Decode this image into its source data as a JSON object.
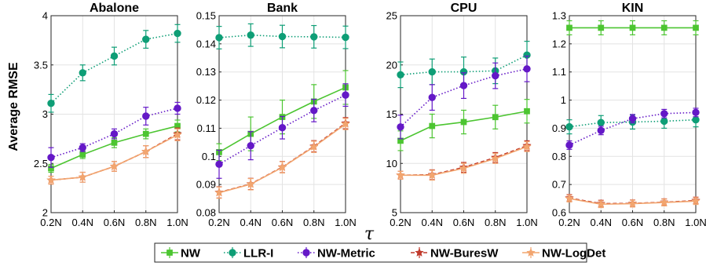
{
  "x_label": "τ",
  "y_label": "Average RMSE",
  "colors": {
    "NW": "#4cc531",
    "LLR-I": "#0e9e76",
    "NW-Metric": "#6418c7",
    "NW-BuresW": "#c0392b",
    "NW-LogDet": "#f2a56f"
  },
  "legend": [
    {
      "name": "NW",
      "marker": "square",
      "dash": "solid",
      "color_key": "NW"
    },
    {
      "name": "LLR-I",
      "marker": "circle",
      "dash": "dotted",
      "color_key": "LLR-I"
    },
    {
      "name": "NW-Metric",
      "marker": "circle",
      "dash": "dotted",
      "color_key": "NW-Metric"
    },
    {
      "name": "NW-BuresW",
      "marker": "star",
      "dash": "dashed",
      "color_key": "NW-BuresW"
    },
    {
      "name": "NW-LogDet",
      "marker": "star",
      "dash": "solid",
      "color_key": "NW-LogDet"
    }
  ],
  "chart_data": [
    {
      "type": "line",
      "title": "Abalone",
      "categories": [
        "0.2N",
        "0.4N",
        "0.6N",
        "0.8N",
        "1.0N"
      ],
      "ylim": [
        2,
        4
      ],
      "yticks": [
        2,
        2.5,
        3,
        3.5,
        4
      ],
      "ytick_labels": [
        "2",
        "2.5",
        "3",
        "3.5",
        "4"
      ],
      "grid": true,
      "series": [
        {
          "name": "NW",
          "values": [
            2.45,
            2.59,
            2.71,
            2.8,
            2.88
          ],
          "errors": [
            0.04,
            0.04,
            0.05,
            0.05,
            0.06
          ]
        },
        {
          "name": "LLR-I",
          "values": [
            3.11,
            3.42,
            3.59,
            3.76,
            3.82
          ],
          "errors": [
            0.09,
            0.08,
            0.09,
            0.09,
            0.09
          ]
        },
        {
          "name": "NW-Metric",
          "values": [
            2.56,
            2.66,
            2.8,
            2.98,
            3.06
          ],
          "errors": [
            0.1,
            0.04,
            0.05,
            0.09,
            0.06
          ]
        },
        {
          "name": "NW-BuresW",
          "values": [
            2.33,
            2.36,
            2.47,
            2.62,
            2.8
          ],
          "errors": [
            0.04,
            0.05,
            0.05,
            0.06,
            0.06
          ]
        },
        {
          "name": "NW-LogDet",
          "values": [
            2.33,
            2.36,
            2.47,
            2.62,
            2.79
          ],
          "errors": [
            0.04,
            0.05,
            0.05,
            0.06,
            0.06
          ]
        }
      ]
    },
    {
      "type": "line",
      "title": "Bank",
      "categories": [
        "0.2N",
        "0.4N",
        "0.6N",
        "0.8N",
        "1.0N"
      ],
      "ylim": [
        0.08,
        0.15
      ],
      "yticks": [
        0.08,
        0.09,
        0.1,
        0.11,
        0.12,
        0.13,
        0.14,
        0.15
      ],
      "ytick_labels": [
        "0.08",
        "0.09",
        "0.1",
        "0.11",
        "0.12",
        "0.13",
        "0.14",
        "0.15"
      ],
      "grid": true,
      "series": [
        {
          "name": "NW",
          "values": [
            0.1015,
            0.108,
            0.114,
            0.1195,
            0.1245
          ],
          "errors": [
            0.003,
            0.006,
            0.006,
            0.006,
            0.006
          ]
        },
        {
          "name": "LLR-I",
          "values": [
            0.1422,
            0.1431,
            0.1426,
            0.1425,
            0.1423
          ],
          "errors": [
            0.004,
            0.004,
            0.004,
            0.004,
            0.004
          ]
        },
        {
          "name": "NW-Metric",
          "values": [
            0.0972,
            0.1038,
            0.1102,
            0.1163,
            0.1218
          ],
          "errors": [
            0.005,
            0.005,
            0.004,
            0.004,
            0.004
          ]
        },
        {
          "name": "NW-BuresW",
          "values": [
            0.0872,
            0.0902,
            0.0962,
            0.1036,
            0.1118
          ],
          "errors": [
            0.002,
            0.002,
            0.002,
            0.002,
            0.002
          ]
        },
        {
          "name": "NW-LogDet",
          "values": [
            0.0871,
            0.0901,
            0.0961,
            0.1034,
            0.1115
          ],
          "errors": [
            0.002,
            0.002,
            0.002,
            0.002,
            0.002
          ]
        }
      ]
    },
    {
      "type": "line",
      "title": "CPU",
      "categories": [
        "0.2N",
        "0.4N",
        "0.6N",
        "0.8N",
        "1.0N"
      ],
      "ylim": [
        5,
        25
      ],
      "yticks": [
        5,
        10,
        15,
        20,
        25
      ],
      "ytick_labels": [
        "5",
        "10",
        "15",
        "20",
        "25"
      ],
      "grid": true,
      "series": [
        {
          "name": "NW",
          "values": [
            12.3,
            13.8,
            14.2,
            14.7,
            15.3
          ],
          "errors": [
            1.0,
            1.2,
            1.2,
            1.2,
            1.2
          ]
        },
        {
          "name": "LLR-I",
          "values": [
            19.0,
            19.3,
            19.3,
            19.4,
            21.0
          ],
          "errors": [
            1.3,
            1.3,
            1.5,
            1.3,
            1.4
          ]
        },
        {
          "name": "NW-Metric",
          "values": [
            13.7,
            16.7,
            17.9,
            18.9,
            19.6
          ],
          "errors": [
            1.2,
            1.3,
            1.3,
            1.3,
            1.3
          ]
        },
        {
          "name": "NW-BuresW",
          "values": [
            8.8,
            8.85,
            9.6,
            10.6,
            11.8
          ],
          "errors": [
            0.4,
            0.5,
            0.5,
            0.5,
            0.5
          ]
        },
        {
          "name": "NW-LogDet",
          "values": [
            8.8,
            8.8,
            9.5,
            10.5,
            11.7
          ],
          "errors": [
            0.4,
            0.5,
            0.5,
            0.5,
            0.5
          ]
        }
      ]
    },
    {
      "type": "line",
      "title": "KIN",
      "categories": [
        "0.2N",
        "0.4N",
        "0.6N",
        "0.8N",
        "1.0N"
      ],
      "ylim": [
        0.6,
        1.3
      ],
      "yticks": [
        0.6,
        0.7,
        0.8,
        0.9,
        1.0,
        1.1,
        1.2,
        1.3
      ],
      "ytick_labels": [
        "0.6",
        "0.7",
        "0.8",
        "0.9",
        "1",
        "1.1",
        "1.2",
        "1.3"
      ],
      "grid": true,
      "series": [
        {
          "name": "NW",
          "values": [
            1.257,
            1.257,
            1.257,
            1.257,
            1.257
          ],
          "errors": [
            0.025,
            0.025,
            0.025,
            0.025,
            0.025
          ]
        },
        {
          "name": "LLR-I",
          "values": [
            0.905,
            0.92,
            0.922,
            0.925,
            0.93
          ],
          "errors": [
            0.025,
            0.025,
            0.025,
            0.025,
            0.025
          ]
        },
        {
          "name": "NW-Metric",
          "values": [
            0.84,
            0.892,
            0.934,
            0.952,
            0.956
          ],
          "errors": [
            0.015,
            0.015,
            0.015,
            0.015,
            0.015
          ]
        },
        {
          "name": "NW-BuresW",
          "values": [
            0.652,
            0.632,
            0.633,
            0.637,
            0.643
          ],
          "errors": [
            0.012,
            0.012,
            0.012,
            0.012,
            0.012
          ]
        },
        {
          "name": "NW-LogDet",
          "values": [
            0.65,
            0.63,
            0.632,
            0.636,
            0.641
          ],
          "errors": [
            0.012,
            0.012,
            0.012,
            0.012,
            0.012
          ]
        }
      ]
    }
  ]
}
